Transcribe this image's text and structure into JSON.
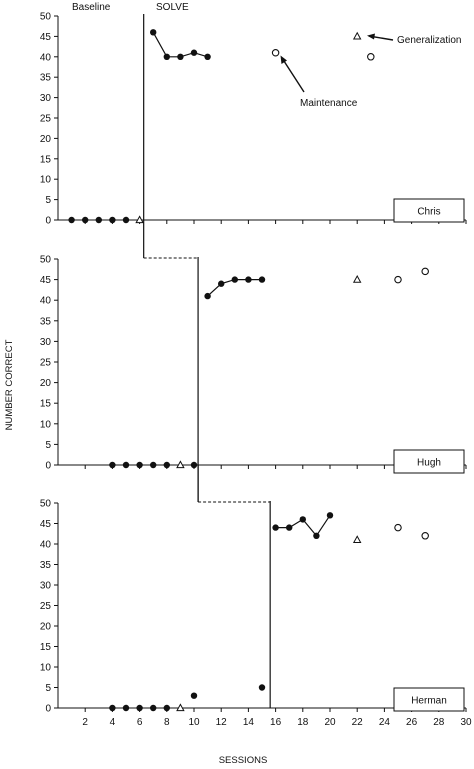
{
  "chart_data": {
    "type": "scatter",
    "ylabel": "NUMBER CORRECT",
    "xlabel": "SESSIONS",
    "x_ticks": [
      2,
      4,
      6,
      8,
      10,
      12,
      14,
      16,
      18,
      20,
      22,
      24,
      26,
      28,
      30
    ],
    "y_ticks": [
      0,
      5,
      10,
      15,
      20,
      25,
      30,
      35,
      40,
      45,
      50
    ],
    "ylim": [
      0,
      50
    ],
    "xlim": [
      0,
      30
    ],
    "phase_labels": {
      "baseline": "Baseline",
      "intervention": "SOLVE"
    },
    "annotations": {
      "generalization": "Generalization",
      "maintenance": "Maintenance"
    },
    "legend_note": "filled circle = baseline/intervention; open triangle = generalization probe; open circle = maintenance probe",
    "panels": [
      {
        "participant": "Chris",
        "phase_change_x": 6.3,
        "baseline": [
          [
            1,
            0
          ],
          [
            2,
            0
          ],
          [
            3,
            0
          ],
          [
            4,
            0
          ],
          [
            5,
            0
          ]
        ],
        "intervention": [
          [
            7,
            46
          ],
          [
            8,
            40
          ],
          [
            9,
            40
          ],
          [
            10,
            41
          ],
          [
            11,
            40
          ]
        ],
        "generalization": [
          [
            6,
            0
          ],
          [
            22,
            45
          ]
        ],
        "maintenance": [
          [
            16,
            41
          ],
          [
            23,
            40
          ]
        ]
      },
      {
        "participant": "Hugh",
        "phase_change_x": 10.3,
        "baseline": [
          [
            4,
            0
          ],
          [
            5,
            0
          ],
          [
            6,
            0
          ],
          [
            7,
            0
          ],
          [
            8,
            0
          ],
          [
            10,
            0
          ]
        ],
        "intervention": [
          [
            11,
            41
          ],
          [
            12,
            44
          ],
          [
            13,
            45
          ],
          [
            14,
            45
          ],
          [
            15,
            45
          ]
        ],
        "generalization": [
          [
            9,
            0
          ],
          [
            22,
            45
          ]
        ],
        "maintenance": [
          [
            25,
            45
          ],
          [
            27,
            47
          ]
        ]
      },
      {
        "participant": "Herman",
        "phase_change_x": 15.6,
        "baseline": [
          [
            4,
            0
          ],
          [
            5,
            0
          ],
          [
            6,
            0
          ],
          [
            7,
            0
          ],
          [
            8,
            0
          ],
          [
            10,
            3
          ],
          [
            15,
            5
          ]
        ],
        "intervention": [
          [
            16,
            44
          ],
          [
            17,
            44
          ],
          [
            18,
            46
          ],
          [
            19,
            42
          ],
          [
            20,
            47
          ]
        ],
        "generalization": [
          [
            9,
            0
          ],
          [
            22,
            41
          ]
        ],
        "maintenance": [
          [
            25,
            44
          ],
          [
            27,
            42
          ]
        ]
      }
    ]
  }
}
